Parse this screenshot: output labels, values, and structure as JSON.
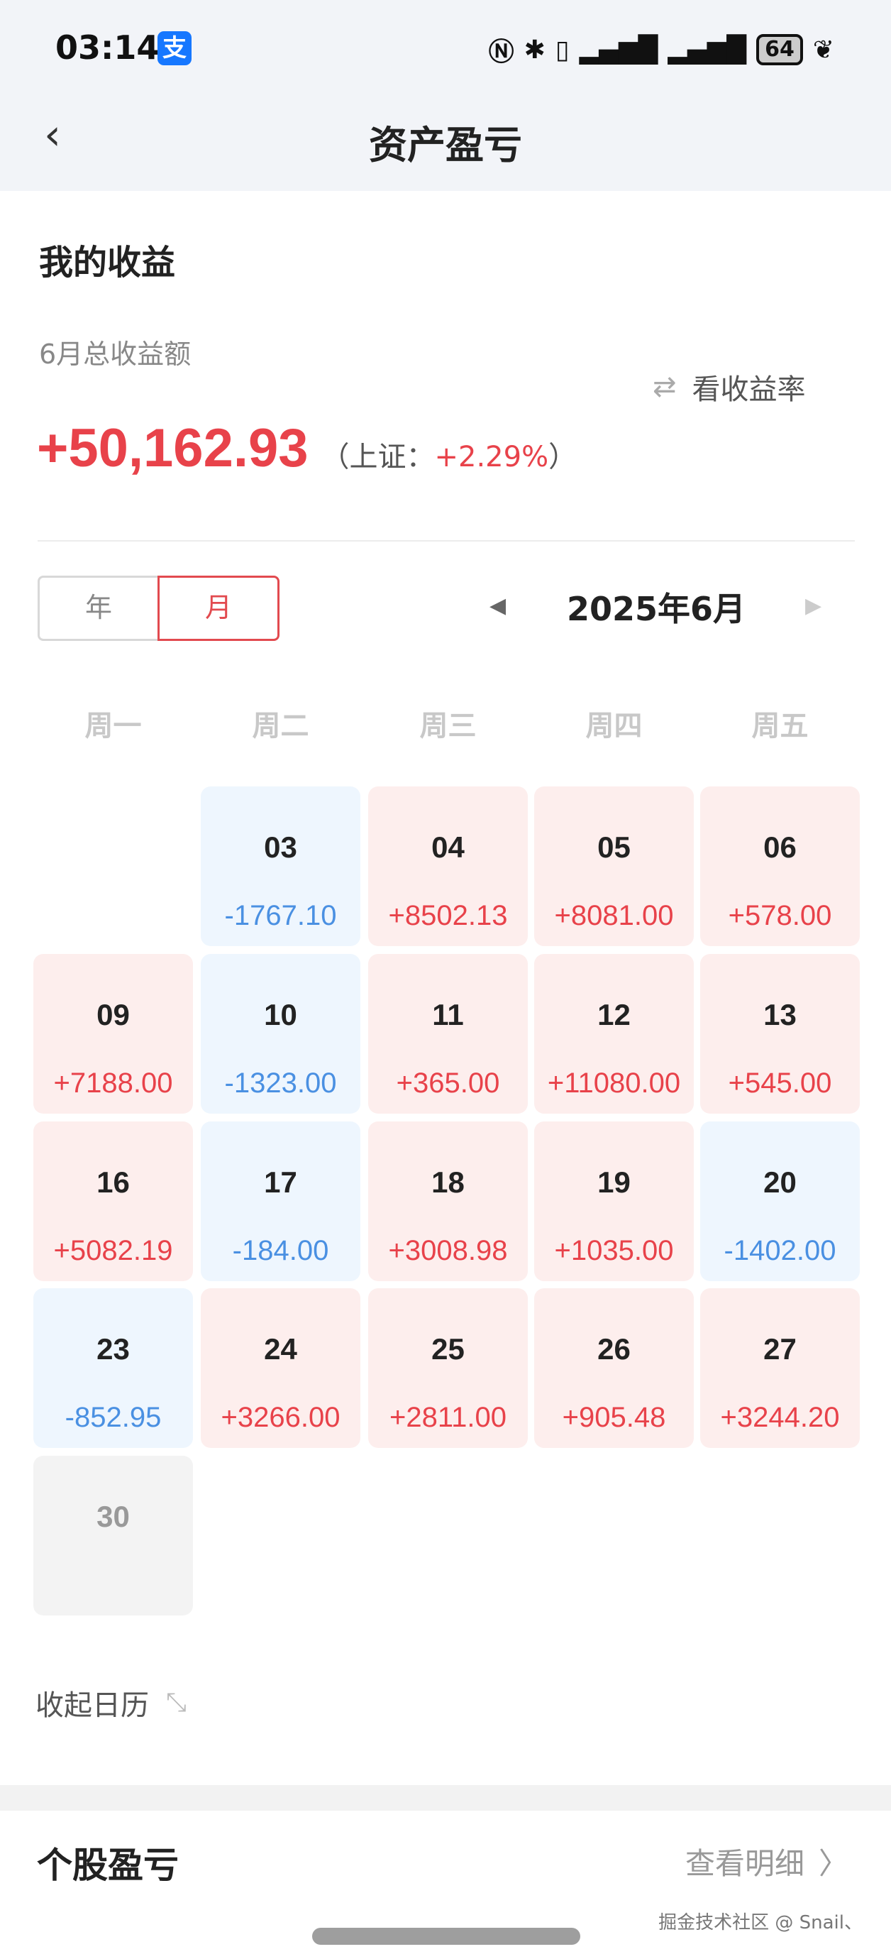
{
  "status_bar": {
    "time": "03:14",
    "app_icon": "支",
    "battery": "64",
    "icons": [
      "nfc-icon",
      "bluetooth-icon",
      "vibrate-icon",
      "signal-icon",
      "signal-icon",
      "battery-icon",
      "leaf-icon"
    ]
  },
  "header": {
    "title": "资产盈亏",
    "back_icon": "‹"
  },
  "summary": {
    "section_title": "我的收益",
    "label": "6月总收益额",
    "amount": "+50,162.93",
    "benchmark_prefix": "（上证：",
    "benchmark_value": "+2.29%",
    "benchmark_suffix": "）",
    "rate_button": "看收益率",
    "rate_icon": "⇄"
  },
  "toggle": {
    "year": "年",
    "month": "月",
    "selected": "月"
  },
  "month_nav": {
    "label": "2025年6月",
    "prev": "◀",
    "next": "▶"
  },
  "weekdays": [
    "周一",
    "周二",
    "周三",
    "周四",
    "周五"
  ],
  "calendar": [
    {
      "day": "03",
      "value": "-1767.10",
      "type": "down"
    },
    {
      "day": "04",
      "value": "+8502.13",
      "type": "up"
    },
    {
      "day": "05",
      "value": "+8081.00",
      "type": "up"
    },
    {
      "day": "06",
      "value": "+578.00",
      "type": "up"
    },
    {
      "day": "09",
      "value": "+7188.00",
      "type": "up"
    },
    {
      "day": "10",
      "value": "-1323.00",
      "type": "down"
    },
    {
      "day": "11",
      "value": "+365.00",
      "type": "up"
    },
    {
      "day": "12",
      "value": "+11080.00",
      "type": "up"
    },
    {
      "day": "13",
      "value": "+545.00",
      "type": "up"
    },
    {
      "day": "16",
      "value": "+5082.19",
      "type": "up"
    },
    {
      "day": "17",
      "value": "-184.00",
      "type": "down"
    },
    {
      "day": "18",
      "value": "+3008.98",
      "type": "up"
    },
    {
      "day": "19",
      "value": "+1035.00",
      "type": "up"
    },
    {
      "day": "20",
      "value": "-1402.00",
      "type": "down"
    },
    {
      "day": "23",
      "value": "-852.95",
      "type": "down"
    },
    {
      "day": "24",
      "value": "+3266.00",
      "type": "up"
    },
    {
      "day": "25",
      "value": "+2811.00",
      "type": "up"
    },
    {
      "day": "26",
      "value": "+905.48",
      "type": "up"
    },
    {
      "day": "27",
      "value": "+3244.20",
      "type": "up"
    },
    {
      "day": "30",
      "value": "",
      "type": "none"
    }
  ],
  "collapse": {
    "label": "收起日历",
    "icon": "⤡"
  },
  "stocks": {
    "title": "个股盈亏",
    "detail": "查看明细",
    "chevron": "〉"
  },
  "watermark": "掘金技术社区 @ Snail、",
  "colors": {
    "up": "#e8424a",
    "down": "#4a90e2",
    "up_bg": "#fdeeed",
    "down_bg": "#eef6fe"
  }
}
